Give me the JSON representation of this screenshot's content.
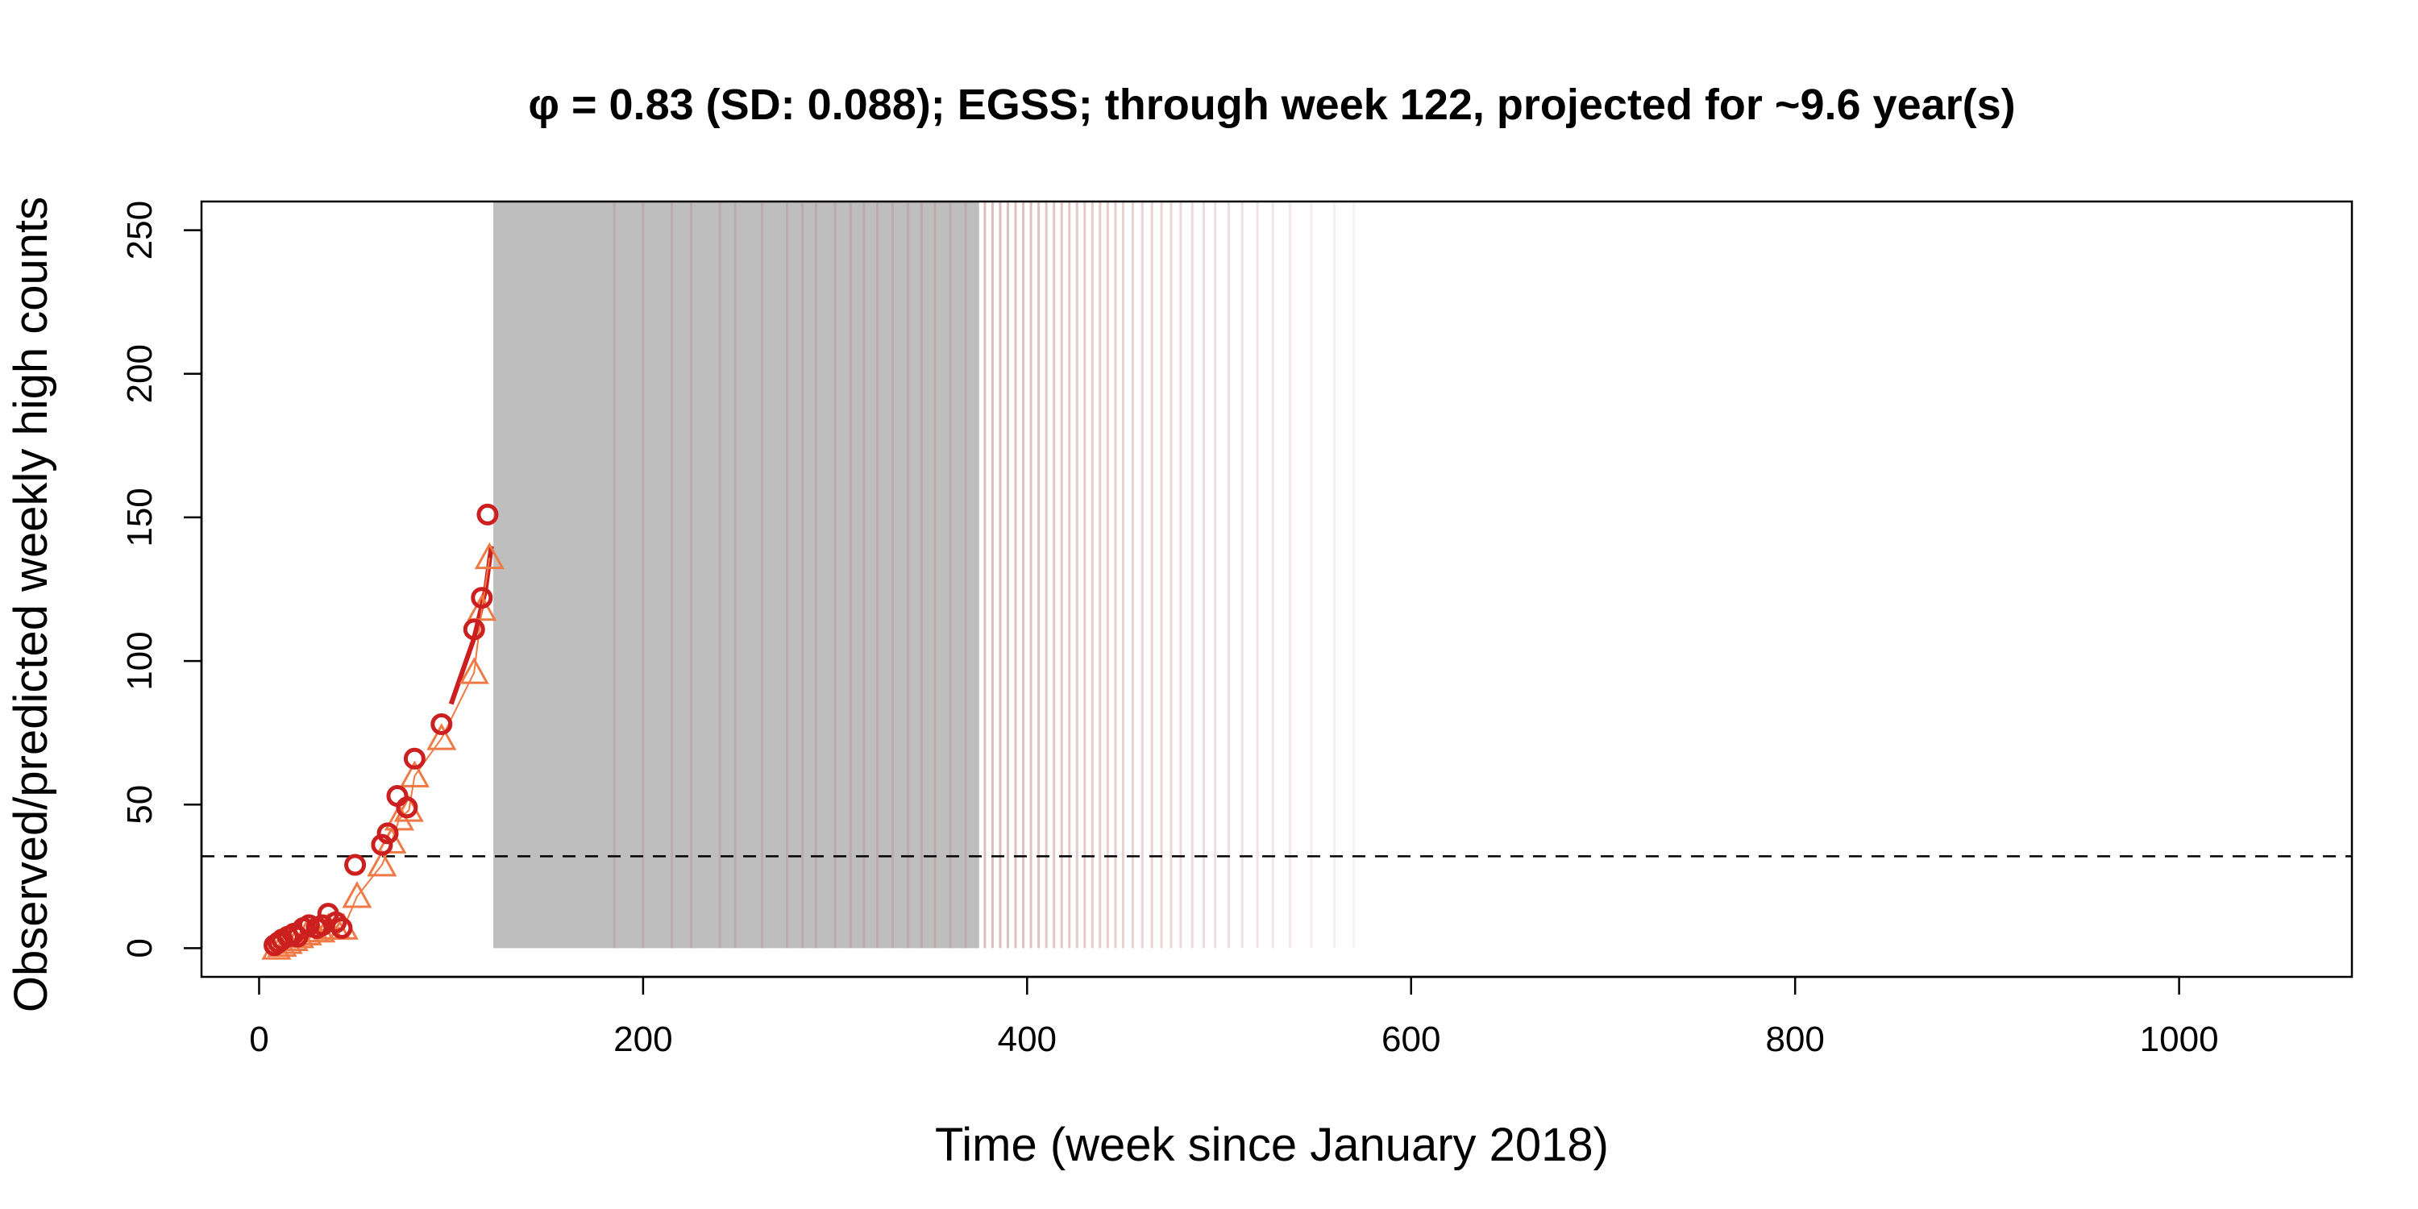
{
  "chart_data": {
    "type": "scatter",
    "title": "φ = 0.83 (SD: 0.088); EGSS; through week 122, projected for ~9.6 year(s)",
    "xlabel": "Time (week since January 2018)",
    "ylabel": "Observed/predicted weekly high counts",
    "xlim": [
      -30,
      1090
    ],
    "ylim": [
      -10,
      260
    ],
    "xticks": [
      0,
      200,
      400,
      600,
      800,
      1000
    ],
    "yticks": [
      0,
      50,
      100,
      150,
      200,
      250
    ],
    "grid": false,
    "threshold": 32,
    "colors": {
      "observed": "#cc1f1f",
      "predicted": "#f07a45",
      "projection_band": "#bebebe",
      "projection_lines": "#c89090",
      "threshold": "#000000"
    },
    "projection_band": {
      "x_start": 122,
      "x_end": 375,
      "y_low": 0,
      "y_high": 260
    },
    "projection_spikes_x": [
      185,
      200,
      215,
      225,
      240,
      248,
      262,
      275,
      283,
      290,
      300,
      308,
      315,
      322,
      330,
      338,
      345,
      352,
      360,
      368,
      378,
      382,
      386,
      390,
      394,
      398,
      402,
      406,
      410,
      414,
      418,
      422,
      426,
      430,
      434,
      438,
      442,
      446,
      450,
      455,
      460,
      465,
      470,
      475,
      480,
      486,
      492,
      498,
      505,
      512,
      520,
      528,
      537,
      548,
      560,
      570
    ],
    "series": [
      {
        "name": "observed",
        "marker": "circle",
        "x": [
          8,
          10,
          12,
          15,
          18,
          20,
          23,
          26,
          30,
          33,
          36,
          40,
          43,
          50,
          64,
          67,
          72,
          77,
          81,
          95,
          112,
          116,
          119
        ],
        "values": [
          1,
          2,
          3,
          4,
          5,
          4,
          7,
          8,
          7,
          8,
          12,
          9,
          7,
          29,
          36,
          40,
          53,
          49,
          66,
          78,
          111,
          122,
          151
        ]
      },
      {
        "name": "predicted",
        "marker": "triangle",
        "x": [
          9,
          12,
          15,
          18,
          21,
          25,
          29,
          32,
          36,
          40,
          44,
          51,
          64,
          69,
          73,
          78,
          81,
          95,
          112,
          116,
          120
        ],
        "values": [
          0,
          1,
          2,
          3,
          4,
          5,
          6,
          6,
          7,
          7,
          7,
          18,
          29,
          37,
          45,
          48,
          60,
          73,
          96,
          118,
          136
        ]
      }
    ],
    "fit_line": {
      "x": [
        100,
        112,
        118,
        121
      ],
      "values": [
        85,
        108,
        125,
        140
      ]
    }
  }
}
